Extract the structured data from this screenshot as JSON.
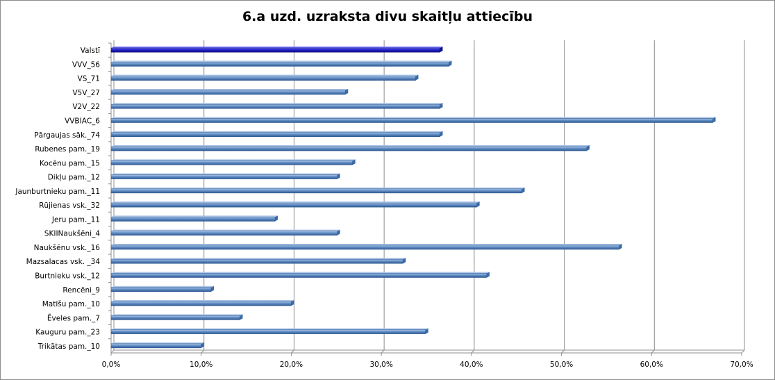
{
  "chart_data": {
    "type": "bar",
    "orientation": "horizontal",
    "title": "6.a uzd.  uzraksta divu skaitļu attiecību",
    "xlabel": "",
    "ylabel": "",
    "xlim": [
      0,
      0.7
    ],
    "x_ticks": [
      0,
      0.1,
      0.2,
      0.3,
      0.4,
      0.5,
      0.6,
      0.7
    ],
    "tick_labels": [
      "0,0%",
      "10,0%",
      "20,0%",
      "30,0%",
      "40,0%",
      "50,0%",
      "60,0%",
      "70,0%"
    ],
    "grid": true,
    "legend": "none",
    "categories": [
      "Valstī",
      "VVV_56",
      "VS_71",
      "V5V_27",
      "V2V_22",
      "VVBIAC_6",
      "Pārgaujas sāk._74",
      "Rubenes pam._19",
      "Kocēnu pam._15",
      "Dikļu pam._12",
      "Jaunburtnieku pam._11",
      "Rūjienas vsk._32",
      "Jeru pam._11",
      "SKIINaukšēni_4",
      "Naukšēnu vsk._16",
      "Mazsalacas vsk. _34",
      "Burtnieku vsk._12",
      "Rencēni_9",
      "Matīšu pam._10",
      "Ēveles pam._7",
      "Kauguru pam._23",
      "Trikātas pam._10"
    ],
    "values": [
      0.365,
      0.375,
      0.338,
      0.26,
      0.365,
      0.668,
      0.365,
      0.528,
      0.268,
      0.251,
      0.456,
      0.406,
      0.182,
      0.251,
      0.564,
      0.324,
      0.417,
      0.111,
      0.2,
      0.143,
      0.349,
      0.1
    ],
    "highlight_category": "Valstī",
    "colors": {
      "bar": "#4f81bd",
      "bar_highlight": "#1f1fc8",
      "grid": "#8c8c8c"
    }
  }
}
